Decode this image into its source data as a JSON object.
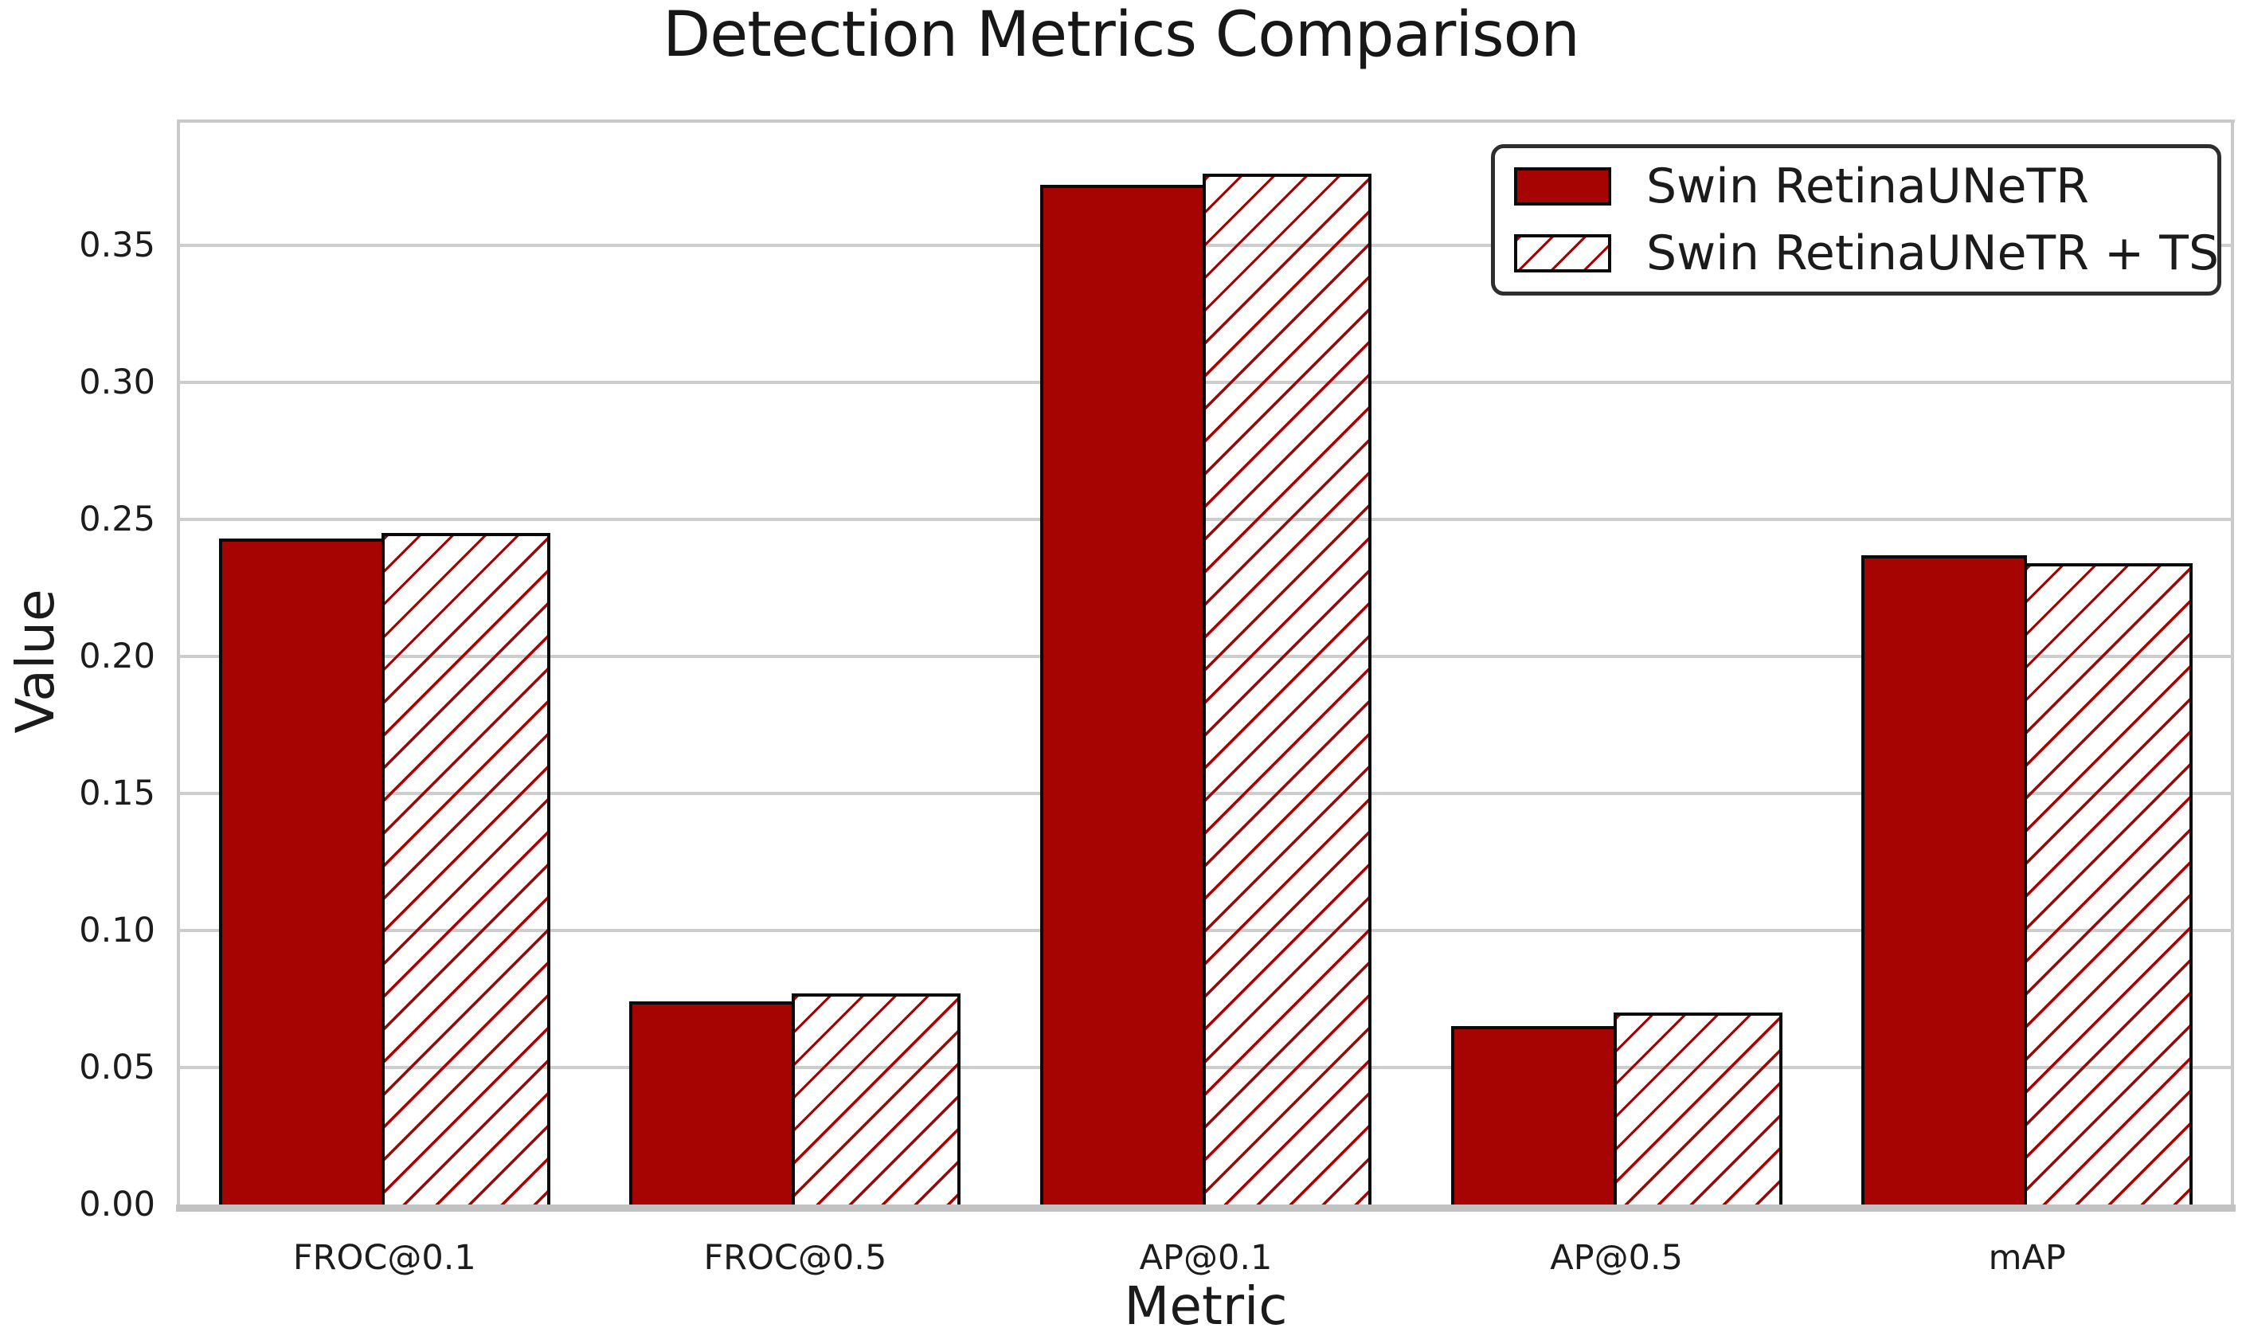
{
  "title": "Detection Metrics Comparison",
  "chart_data": {
    "type": "bar",
    "title": "Detection Metrics Comparison",
    "xlabel": "Metric",
    "ylabel": "Value",
    "categories": [
      "FROC@0.1",
      "FROC@0.5",
      "AP@0.1",
      "AP@0.5",
      "mAP"
    ],
    "series": [
      {
        "name": "Swin RetinaUNeTR",
        "style": "solid",
        "color": "#a60303",
        "values": [
          0.243,
          0.074,
          0.372,
          0.065,
          0.237
        ]
      },
      {
        "name": "Swin RetinaUNeTR + TS",
        "style": "hatched",
        "hatch": "/",
        "color": "#a60303",
        "values": [
          0.245,
          0.077,
          0.376,
          0.07,
          0.234
        ]
      }
    ],
    "ylim": [
      0,
      0.395
    ],
    "yticks": [
      "0.00",
      "0.05",
      "0.10",
      "0.15",
      "0.20",
      "0.25",
      "0.30",
      "0.35"
    ],
    "grid": true,
    "legend_position": "upper right"
  },
  "colors": {
    "bar_fill": "#a60303",
    "bar_edge": "#0a0a0a",
    "gridline": "#cdcdcd",
    "spine": "#c9c9c9",
    "text": "#1b1b1b",
    "legend_border": "#2e2e2e",
    "background": "#ffffff"
  }
}
